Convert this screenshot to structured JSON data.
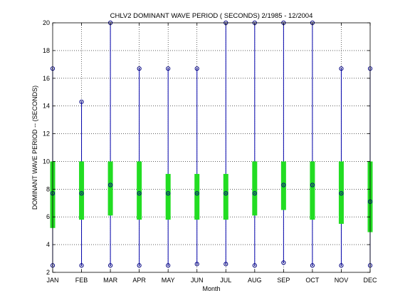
{
  "chart_data": {
    "type": "box",
    "title": "CHLV2  DOMINANT WAVE PERIOD ( SECONDS) 2/1985 - 12/2004",
    "xlabel": "Month",
    "ylabel": "DOMINANT WAVE PERIOD -- (SECONDS)",
    "ylim": [
      2,
      20
    ],
    "yticks": [
      2,
      4,
      6,
      8,
      10,
      12,
      14,
      16,
      18,
      20
    ],
    "grid": true,
    "categories": [
      "JAN",
      "FEB",
      "MAR",
      "APR",
      "MAY",
      "JUN",
      "JUL",
      "AUG",
      "SEP",
      "OCT",
      "NOV",
      "DEC"
    ],
    "min": [
      2.5,
      2.5,
      2.5,
      2.5,
      2.5,
      2.6,
      2.6,
      2.5,
      2.7,
      2.5,
      2.5,
      2.5
    ],
    "q1": [
      5.2,
      5.8,
      6.1,
      5.8,
      5.8,
      5.8,
      5.8,
      6.1,
      6.5,
      5.8,
      5.5,
      4.9
    ],
    "median": [
      7.7,
      7.7,
      8.3,
      7.7,
      7.7,
      7.7,
      7.7,
      7.7,
      8.3,
      8.3,
      7.7,
      7.1
    ],
    "q3": [
      10.0,
      10.0,
      10.0,
      10.0,
      9.1,
      9.1,
      9.1,
      10.0,
      10.0,
      10.0,
      10.0,
      10.0
    ],
    "max": [
      16.7,
      14.3,
      20.0,
      16.7,
      16.7,
      16.7,
      20.0,
      20.0,
      20.0,
      20.0,
      16.7,
      16.7
    ],
    "colors": {
      "whisker": "#0000aa",
      "box": "#22dd22",
      "marker": "#000080"
    }
  }
}
